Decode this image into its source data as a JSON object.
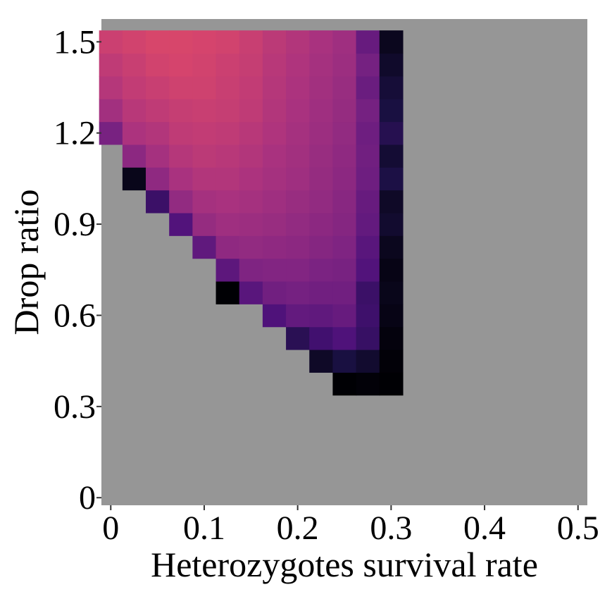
{
  "chart_data": {
    "type": "heatmap",
    "title": "",
    "xlabel": "Heterozygotes survival rate",
    "ylabel": "Drop ratio",
    "xlim": [
      -0.01,
      0.51
    ],
    "ylim": [
      -0.025,
      1.575
    ],
    "x_ticks": [
      "0",
      "0.1",
      "0.2",
      "0.3",
      "0.4",
      "0.5"
    ],
    "y_ticks": [
      "0",
      "0.3",
      "0.6",
      "0.9",
      "1.2",
      "1.5"
    ],
    "cell_width": 0.025,
    "cell_height": 0.075,
    "background_color": "#969696",
    "colorscale": [
      "#000004",
      "#1a1042",
      "#4a1079",
      "#7b2382",
      "#a9327f",
      "#d6456c",
      "#f3655c",
      "#fe9a6a"
    ],
    "columns": [
      {
        "x": 0.0,
        "rows": [
          [
            1.2,
            0.42
          ],
          [
            1.275,
            0.55
          ],
          [
            1.35,
            0.61
          ],
          [
            1.425,
            0.64
          ],
          [
            1.5,
            0.68
          ]
        ]
      },
      {
        "x": 0.025,
        "rows": [
          [
            1.05,
            0.05
          ],
          [
            1.125,
            0.48
          ],
          [
            1.2,
            0.58
          ],
          [
            1.275,
            0.62
          ],
          [
            1.35,
            0.65
          ],
          [
            1.425,
            0.67
          ],
          [
            1.5,
            0.7
          ]
        ]
      },
      {
        "x": 0.05,
        "rows": [
          [
            0.975,
            0.24
          ],
          [
            1.05,
            0.49
          ],
          [
            1.125,
            0.56
          ],
          [
            1.2,
            0.6
          ],
          [
            1.275,
            0.64
          ],
          [
            1.35,
            0.67
          ],
          [
            1.425,
            0.7
          ],
          [
            1.5,
            0.72
          ]
        ]
      },
      {
        "x": 0.075,
        "rows": [
          [
            0.9,
            0.31
          ],
          [
            0.975,
            0.5
          ],
          [
            1.05,
            0.57
          ],
          [
            1.125,
            0.61
          ],
          [
            1.2,
            0.64
          ],
          [
            1.275,
            0.66
          ],
          [
            1.35,
            0.69
          ],
          [
            1.425,
            0.71
          ],
          [
            1.5,
            0.72
          ]
        ]
      },
      {
        "x": 0.1,
        "rows": [
          [
            0.825,
            0.35
          ],
          [
            0.9,
            0.51
          ],
          [
            0.975,
            0.56
          ],
          [
            1.05,
            0.6
          ],
          [
            1.125,
            0.63
          ],
          [
            1.2,
            0.65
          ],
          [
            1.275,
            0.67
          ],
          [
            1.35,
            0.69
          ],
          [
            1.425,
            0.7
          ],
          [
            1.5,
            0.71
          ]
        ]
      },
      {
        "x": 0.125,
        "rows": [
          [
            0.675,
            0.0
          ],
          [
            0.75,
            0.34
          ],
          [
            0.825,
            0.49
          ],
          [
            0.9,
            0.54
          ],
          [
            0.975,
            0.57
          ],
          [
            1.05,
            0.6
          ],
          [
            1.125,
            0.62
          ],
          [
            1.2,
            0.64
          ],
          [
            1.275,
            0.66
          ],
          [
            1.35,
            0.67
          ],
          [
            1.425,
            0.68
          ],
          [
            1.5,
            0.7
          ]
        ]
      },
      {
        "x": 0.15,
        "rows": [
          [
            0.675,
            0.33
          ],
          [
            0.75,
            0.44
          ],
          [
            0.825,
            0.5
          ],
          [
            0.9,
            0.53
          ],
          [
            0.975,
            0.56
          ],
          [
            1.05,
            0.58
          ],
          [
            1.125,
            0.6
          ],
          [
            1.2,
            0.62
          ],
          [
            1.275,
            0.64
          ],
          [
            1.35,
            0.65
          ],
          [
            1.425,
            0.66
          ],
          [
            1.5,
            0.67
          ]
        ]
      },
      {
        "x": 0.175,
        "rows": [
          [
            0.6,
            0.3
          ],
          [
            0.675,
            0.4
          ],
          [
            0.75,
            0.45
          ],
          [
            0.825,
            0.49
          ],
          [
            0.9,
            0.52
          ],
          [
            0.975,
            0.54
          ],
          [
            1.05,
            0.56
          ],
          [
            1.125,
            0.57
          ],
          [
            1.2,
            0.59
          ],
          [
            1.275,
            0.6
          ],
          [
            1.35,
            0.61
          ],
          [
            1.425,
            0.62
          ],
          [
            1.5,
            0.63
          ]
        ]
      },
      {
        "x": 0.2,
        "rows": [
          [
            0.525,
            0.19
          ],
          [
            0.6,
            0.36
          ],
          [
            0.675,
            0.41
          ],
          [
            0.75,
            0.45
          ],
          [
            0.825,
            0.48
          ],
          [
            0.9,
            0.5
          ],
          [
            0.975,
            0.52
          ],
          [
            1.05,
            0.54
          ],
          [
            1.125,
            0.55
          ],
          [
            1.2,
            0.56
          ],
          [
            1.275,
            0.57
          ],
          [
            1.35,
            0.58
          ],
          [
            1.425,
            0.59
          ],
          [
            1.5,
            0.6
          ]
        ]
      },
      {
        "x": 0.225,
        "rows": [
          [
            0.45,
            0.08
          ],
          [
            0.525,
            0.26
          ],
          [
            0.6,
            0.35
          ],
          [
            0.675,
            0.4
          ],
          [
            0.75,
            0.43
          ],
          [
            0.825,
            0.46
          ],
          [
            0.9,
            0.48
          ],
          [
            0.975,
            0.5
          ],
          [
            1.05,
            0.51
          ],
          [
            1.125,
            0.52
          ],
          [
            1.2,
            0.53
          ],
          [
            1.275,
            0.54
          ],
          [
            1.35,
            0.55
          ],
          [
            1.425,
            0.56
          ],
          [
            1.5,
            0.57
          ]
        ]
      },
      {
        "x": 0.25,
        "rows": [
          [
            0.375,
            0.0
          ],
          [
            0.45,
            0.14
          ],
          [
            0.525,
            0.3
          ],
          [
            0.6,
            0.37
          ],
          [
            0.675,
            0.4
          ],
          [
            0.75,
            0.42
          ],
          [
            0.825,
            0.44
          ],
          [
            0.9,
            0.46
          ],
          [
            0.975,
            0.47
          ],
          [
            1.05,
            0.48
          ],
          [
            1.125,
            0.49
          ],
          [
            1.2,
            0.5
          ],
          [
            1.275,
            0.51
          ],
          [
            1.35,
            0.52
          ],
          [
            1.425,
            0.53
          ],
          [
            1.5,
            0.54
          ]
        ]
      },
      {
        "x": 0.275,
        "rows": [
          [
            0.375,
            0.01
          ],
          [
            0.45,
            0.1
          ],
          [
            0.525,
            0.23
          ],
          [
            0.6,
            0.25
          ],
          [
            0.675,
            0.24
          ],
          [
            0.75,
            0.31
          ],
          [
            0.825,
            0.33
          ],
          [
            0.9,
            0.36
          ],
          [
            0.975,
            0.37
          ],
          [
            1.05,
            0.39
          ],
          [
            1.125,
            0.4
          ],
          [
            1.2,
            0.39
          ],
          [
            1.275,
            0.41
          ],
          [
            1.35,
            0.38
          ],
          [
            1.425,
            0.41
          ],
          [
            1.5,
            0.37
          ]
        ]
      },
      {
        "x": 0.3,
        "rows": [
          [
            0.375,
            0.0
          ],
          [
            0.45,
            0.01
          ],
          [
            0.525,
            0.02
          ],
          [
            0.6,
            0.04
          ],
          [
            0.675,
            0.05
          ],
          [
            0.75,
            0.04
          ],
          [
            0.825,
            0.06
          ],
          [
            0.9,
            0.1
          ],
          [
            0.975,
            0.08
          ],
          [
            1.05,
            0.15
          ],
          [
            1.125,
            0.11
          ],
          [
            1.2,
            0.18
          ],
          [
            1.275,
            0.14
          ],
          [
            1.35,
            0.12
          ],
          [
            1.425,
            0.09
          ],
          [
            1.5,
            0.06
          ]
        ]
      }
    ]
  }
}
